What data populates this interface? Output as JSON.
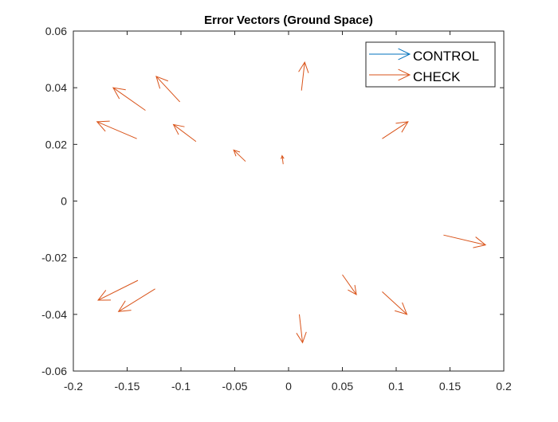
{
  "chart_data": {
    "type": "quiver",
    "title": "Error Vectors (Ground Space)",
    "xlabel": "",
    "ylabel": "",
    "xlim": [
      -0.2,
      0.2
    ],
    "ylim": [
      -0.06,
      0.06
    ],
    "xticks": [
      -0.2,
      -0.15,
      -0.1,
      -0.05,
      0,
      0.05,
      0.1,
      0.15,
      0.2
    ],
    "yticks": [
      -0.06,
      -0.04,
      -0.02,
      0,
      0.02,
      0.04,
      0.06
    ],
    "xtick_labels": [
      "-0.2",
      "-0.15",
      "-0.1",
      "-0.05",
      "0",
      "0.05",
      "0.1",
      "0.15",
      "0.2"
    ],
    "ytick_labels": [
      "-0.06",
      "-0.04",
      "-0.02",
      "0",
      "0.02",
      "0.04",
      "0.06"
    ],
    "grid": false,
    "box": true,
    "legend_location": "top-right",
    "series": [
      {
        "name": "CONTROL",
        "color": "#0072BD",
        "vectors": []
      },
      {
        "name": "CHECK",
        "color": "#D95319",
        "vectors": [
          {
            "x0": -0.133,
            "y0": 0.032,
            "x1": -0.163,
            "y1": 0.04
          },
          {
            "x0": -0.101,
            "y0": 0.035,
            "x1": -0.123,
            "y1": 0.044
          },
          {
            "x0": 0.012,
            "y0": 0.039,
            "x1": 0.015,
            "y1": 0.049
          },
          {
            "x0": -0.141,
            "y0": 0.022,
            "x1": -0.178,
            "y1": 0.028
          },
          {
            "x0": -0.086,
            "y0": 0.021,
            "x1": -0.107,
            "y1": 0.027
          },
          {
            "x0": -0.04,
            "y0": 0.014,
            "x1": -0.051,
            "y1": 0.018
          },
          {
            "x0": -0.005,
            "y0": 0.013,
            "x1": -0.006,
            "y1": 0.016
          },
          {
            "x0": 0.087,
            "y0": 0.022,
            "x1": 0.111,
            "y1": 0.028
          },
          {
            "x0": 0.144,
            "y0": -0.012,
            "x1": 0.183,
            "y1": -0.0155
          },
          {
            "x0": 0.05,
            "y0": -0.026,
            "x1": 0.063,
            "y1": -0.033
          },
          {
            "x0": 0.087,
            "y0": -0.032,
            "x1": 0.11,
            "y1": -0.04
          },
          {
            "x0": -0.14,
            "y0": -0.028,
            "x1": -0.177,
            "y1": -0.035
          },
          {
            "x0": -0.124,
            "y0": -0.031,
            "x1": -0.158,
            "y1": -0.039
          },
          {
            "x0": 0.01,
            "y0": -0.04,
            "x1": 0.013,
            "y1": -0.05
          }
        ]
      }
    ]
  }
}
